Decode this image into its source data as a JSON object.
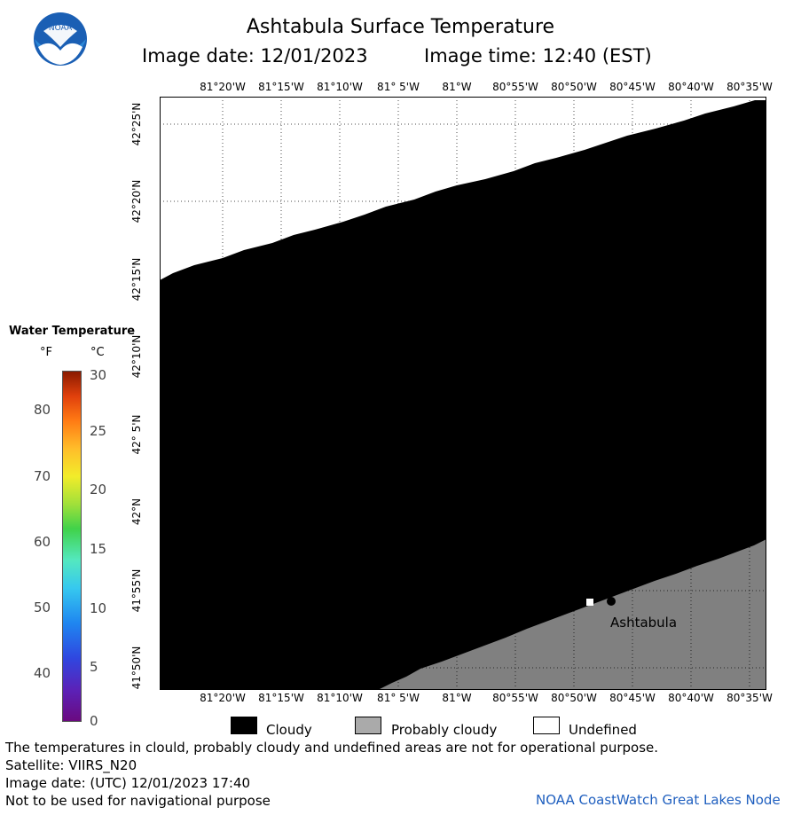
{
  "header": {
    "title": "Ashtabula Surface Temperature",
    "image_date": "Image date: 12/01/2023",
    "image_time": "Image time: 12:40 (EST)",
    "logo_text": "NOAA"
  },
  "map": {
    "lon_ticks": [
      "81°20'W",
      "81°15'W",
      "81°10'W",
      "81° 5'W",
      "81°W",
      "80°55'W",
      "80°50'W",
      "80°45'W",
      "80°40'W",
      "80°35'W"
    ],
    "lat_ticks": [
      "42°25'N",
      "42°20'N",
      "42°15'N",
      "42°10'N",
      "42° 5'N",
      "42°N",
      "41°55'N",
      "41°50'N"
    ],
    "colors": {
      "cloudy": "#000000",
      "probably_cloudy": "#808080",
      "undefined": "#ffffff",
      "grid": "#000000"
    },
    "city": {
      "name": "Ashtabula"
    }
  },
  "legend": {
    "title": "Water Temperature",
    "unit_f": "°F",
    "unit_c": "°C",
    "f_values": [
      "80",
      "70",
      "60",
      "50",
      "40"
    ],
    "c_values": [
      "30",
      "25",
      "20",
      "15",
      "10",
      "5",
      "0"
    ]
  },
  "key": {
    "cloudy": "Cloudy",
    "probably_cloudy": "Probably cloudy",
    "undefined": "Undefined"
  },
  "footer": {
    "disclaimer": "The temperatures in clould, probably cloudy and undefined areas are not for operational purpose.",
    "satellite": "Satellite: VIIRS_N20",
    "utc_date": "Image date: (UTC) 12/01/2023  17:40",
    "nav_warning": "Not to be used for navigational purpose",
    "credit": "NOAA CoastWatch Great Lakes Node"
  }
}
